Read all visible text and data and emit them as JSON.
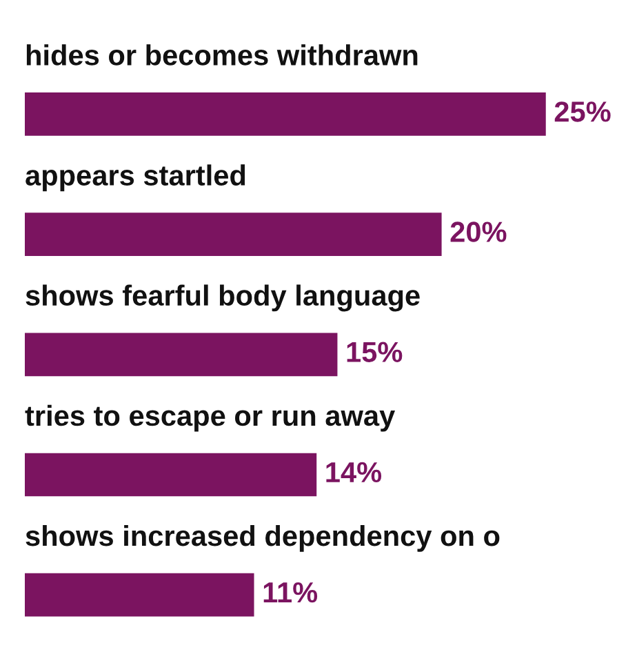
{
  "chart_data": {
    "type": "bar",
    "orientation": "horizontal",
    "categories": [
      "hides or becomes withdrawn",
      "appears startled",
      "shows fearful body language",
      "tries to escape or run away",
      "shows increased dependency on o"
    ],
    "values": [
      25,
      20,
      15,
      14,
      11
    ],
    "value_labels": [
      "25%",
      "20%",
      "15%",
      "14%",
      "11%"
    ],
    "color": "#7b1460",
    "tick_labels": false
  }
}
